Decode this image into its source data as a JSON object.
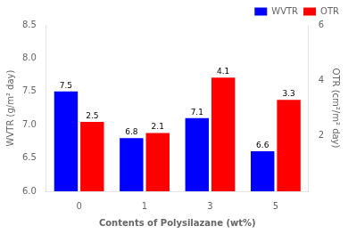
{
  "chart_data": {
    "type": "bar",
    "categories": [
      "0",
      "1",
      "3",
      "5"
    ],
    "series": [
      {
        "name": "WVTR",
        "color": "#0000FF",
        "values": [
          7.5,
          6.8,
          7.1,
          6.6
        ],
        "axis": "y"
      },
      {
        "name": "OTR",
        "color": "#FF0000",
        "values": [
          2.5,
          2.1,
          4.1,
          3.3
        ],
        "axis": "y2"
      }
    ],
    "xlabel": "Contents of Polysilazane (wt%)",
    "ylabel": "WVTR (g/m² day)",
    "y2label": "OTR (cm²/m² day)",
    "ylim": [
      6.0,
      8.5
    ],
    "yticks": [
      {
        "value": 6.0,
        "label": "6.0"
      },
      6.5,
      {
        "value": 7.0,
        "label": "7.0"
      },
      7.5,
      {
        "value": 8.0,
        "label": "8.0"
      },
      8.5
    ],
    "y2lim": [
      0,
      6
    ],
    "y2ticks": [
      2,
      4,
      6
    ],
    "data_labels": true,
    "legend": "upper right",
    "grid": false
  }
}
